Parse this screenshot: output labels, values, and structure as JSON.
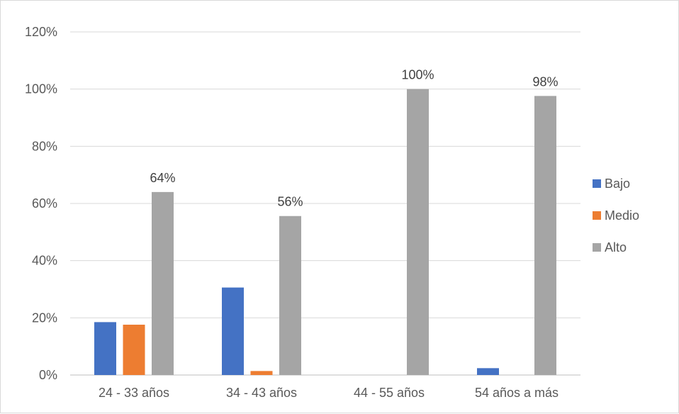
{
  "chart_data": {
    "type": "bar",
    "categories": [
      "24 - 33 años",
      "34 - 43 años",
      "44 - 55 años",
      "54 años a más"
    ],
    "series": [
      {
        "name": "Bajo",
        "color": "#4472C4",
        "values": [
          18.5,
          30.6,
          0,
          2.4
        ]
      },
      {
        "name": "Medio",
        "color": "#ED7D31",
        "values": [
          17.6,
          1.4,
          0,
          0
        ]
      },
      {
        "name": "Alto",
        "color": "#A5A5A5",
        "values": [
          64.0,
          55.6,
          100,
          97.6
        ]
      }
    ],
    "data_labels": [
      {
        "series": "Alto",
        "category": "24 - 33 años",
        "text": "64%"
      },
      {
        "series": "Alto",
        "category": "34 - 43 años",
        "text": "56%"
      },
      {
        "series": "Alto",
        "category": "44 - 55 años",
        "text": "100%"
      },
      {
        "series": "Alto",
        "category": "54 años a más",
        "text": "98%"
      }
    ],
    "y_ticks": [
      "0%",
      "20%",
      "40%",
      "60%",
      "80%",
      "100%",
      "120%"
    ],
    "ylim": [
      0,
      120
    ],
    "grid": true,
    "legend": "right"
  }
}
